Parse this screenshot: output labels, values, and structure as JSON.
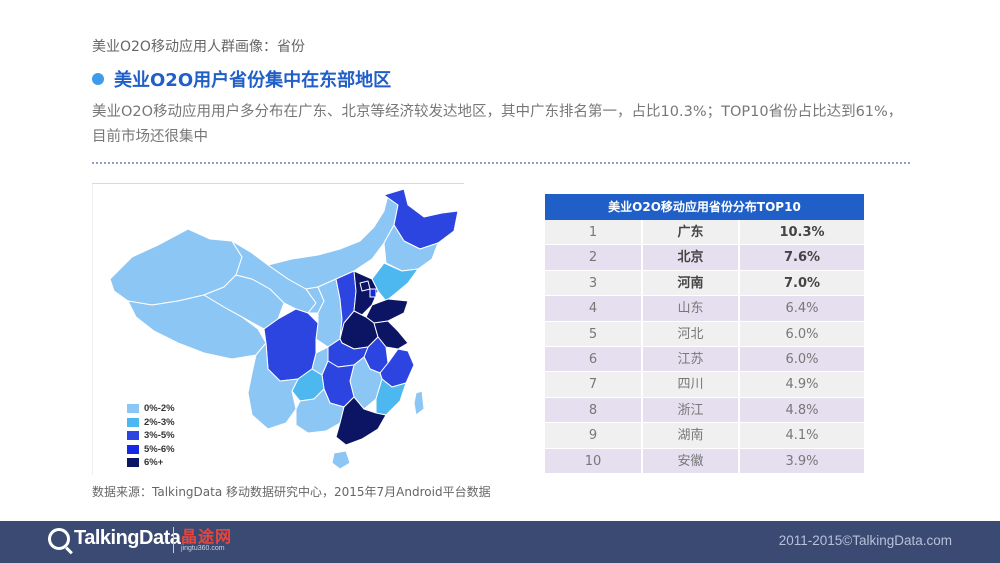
{
  "breadcrumb": "美业O2O移动应用人群画像：省份",
  "headline": "美业O2O用户省份集中在东部地区",
  "summary": "美业O2O移动应用用户多分布在广东、北京等经济较发达地区，其中广东排名第一，占比10.3%；TOP10省份占比达到61%，目前市场还很集中",
  "colors": {
    "accent": "#1f5fc7",
    "bullet": "#3d9be9",
    "footer": "#3b4a72",
    "tier_0_2": "#8cc6f4",
    "tier_2_3": "#4db8ef",
    "tier_3_5": "#2c44e0",
    "tier_5_6": "#1428e6",
    "tier_6_plus": "#0c1464"
  },
  "map_legend": [
    {
      "label": "0%-2%",
      "color": "#8cc6f4"
    },
    {
      "label": "2%-3%",
      "color": "#4db8ef"
    },
    {
      "label": "3%-5%",
      "color": "#2c44e0"
    },
    {
      "label": "5%-6%",
      "color": "#1428e6"
    },
    {
      "label": "6%+",
      "color": "#0c1464"
    }
  ],
  "table": {
    "title": "美业O2O移动应用省份分布TOP10",
    "rows": [
      {
        "rank": "1",
        "province": "广东",
        "share": "10.3%"
      },
      {
        "rank": "2",
        "province": "北京",
        "share": "7.6%"
      },
      {
        "rank": "3",
        "province": "河南",
        "share": "7.0%"
      },
      {
        "rank": "4",
        "province": "山东",
        "share": "6.4%"
      },
      {
        "rank": "5",
        "province": "河北",
        "share": "6.0%"
      },
      {
        "rank": "6",
        "province": "江苏",
        "share": "6.0%"
      },
      {
        "rank": "7",
        "province": "四川",
        "share": "4.9%"
      },
      {
        "rank": "8",
        "province": "浙江",
        "share": "4.8%"
      },
      {
        "rank": "9",
        "province": "湖南",
        "share": "4.1%"
      },
      {
        "rank": "10",
        "province": "安徽",
        "share": "3.9%"
      }
    ]
  },
  "source": "数据来源：TalkingData 移动数据研究中心，2015年7月Android平台数据",
  "footer": {
    "logo_text": "TalkingData",
    "partner_name": "晶途网",
    "partner_url": "jingtu360.com",
    "copyright": "2011-2015©TalkingData.com"
  }
}
